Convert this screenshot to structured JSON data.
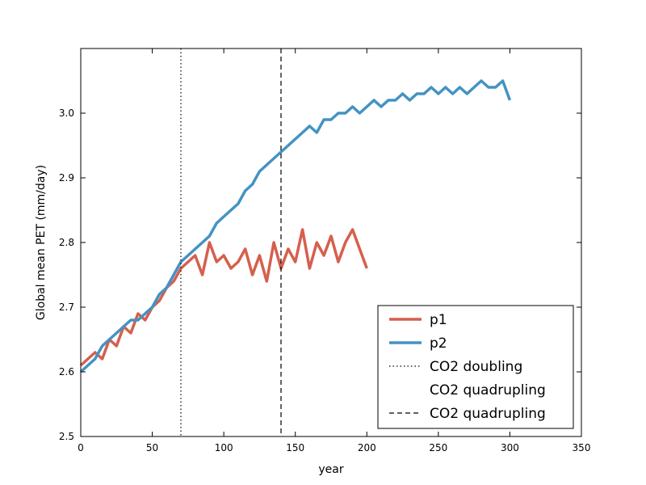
{
  "chart_data": {
    "type": "line",
    "xlabel": "year",
    "ylabel": "Global mean PET (mm/day)",
    "xlim": [
      0,
      350
    ],
    "ylim": [
      2.5,
      3.1
    ],
    "x_ticks": [
      0,
      50,
      100,
      150,
      200,
      250,
      300,
      350
    ],
    "y_ticks": [
      2.5,
      2.6,
      2.7,
      2.8,
      2.9,
      3.0
    ],
    "x_tick_labels": [
      "0",
      "50",
      "100",
      "150",
      "200",
      "250",
      "300",
      "350"
    ],
    "y_tick_labels": [
      "2.5",
      "2.6",
      "2.7",
      "2.8",
      "2.9",
      "3.0"
    ],
    "grid": false,
    "legend_position": "lower-right",
    "colors": {
      "p1": "#d65f4e",
      "p2": "#4393c3",
      "ref": "#000000"
    },
    "series": [
      {
        "name": "p1",
        "x": [
          0,
          5,
          10,
          15,
          20,
          25,
          30,
          35,
          40,
          45,
          50,
          55,
          60,
          65,
          70,
          75,
          80,
          85,
          90,
          95,
          100,
          105,
          110,
          115,
          120,
          125,
          130,
          135,
          140,
          145,
          150,
          155,
          160,
          165,
          170,
          175,
          180,
          185,
          190,
          195,
          200
        ],
        "y": [
          2.61,
          2.62,
          2.63,
          2.62,
          2.65,
          2.64,
          2.67,
          2.66,
          2.69,
          2.68,
          2.7,
          2.71,
          2.73,
          2.74,
          2.76,
          2.77,
          2.78,
          2.75,
          2.8,
          2.77,
          2.78,
          2.76,
          2.77,
          2.79,
          2.75,
          2.78,
          2.74,
          2.8,
          2.76,
          2.79,
          2.77,
          2.82,
          2.76,
          2.8,
          2.78,
          2.81,
          2.77,
          2.8,
          2.82,
          2.79,
          2.76
        ]
      },
      {
        "name": "p2",
        "x": [
          0,
          5,
          10,
          15,
          20,
          25,
          30,
          35,
          40,
          45,
          50,
          55,
          60,
          65,
          70,
          75,
          80,
          85,
          90,
          95,
          100,
          105,
          110,
          115,
          120,
          125,
          130,
          135,
          140,
          145,
          150,
          155,
          160,
          165,
          170,
          175,
          180,
          185,
          190,
          195,
          200,
          205,
          210,
          215,
          220,
          225,
          230,
          235,
          240,
          245,
          250,
          255,
          260,
          265,
          270,
          275,
          280,
          285,
          290,
          295,
          300
        ],
        "y": [
          2.6,
          2.61,
          2.62,
          2.64,
          2.65,
          2.66,
          2.67,
          2.68,
          2.68,
          2.69,
          2.7,
          2.72,
          2.73,
          2.75,
          2.77,
          2.78,
          2.79,
          2.8,
          2.81,
          2.83,
          2.84,
          2.85,
          2.86,
          2.88,
          2.89,
          2.91,
          2.92,
          2.93,
          2.94,
          2.95,
          2.96,
          2.97,
          2.98,
          2.97,
          2.99,
          2.99,
          3.0,
          3.0,
          3.01,
          3.0,
          3.01,
          3.02,
          3.01,
          3.02,
          3.02,
          3.03,
          3.02,
          3.03,
          3.03,
          3.04,
          3.03,
          3.04,
          3.03,
          3.04,
          3.03,
          3.04,
          3.05,
          3.04,
          3.04,
          3.05,
          3.02
        ]
      }
    ],
    "reference_lines": [
      {
        "name": "CO2 doubling",
        "x": 70,
        "style": "dotted"
      },
      {
        "name": "CO2 quadrupling",
        "x": 140,
        "style": "dashed"
      }
    ],
    "legend": [
      "p1",
      "p2",
      "CO2 doubling",
      "CO2 quadrupling",
      "CO2 quadrupling"
    ]
  }
}
